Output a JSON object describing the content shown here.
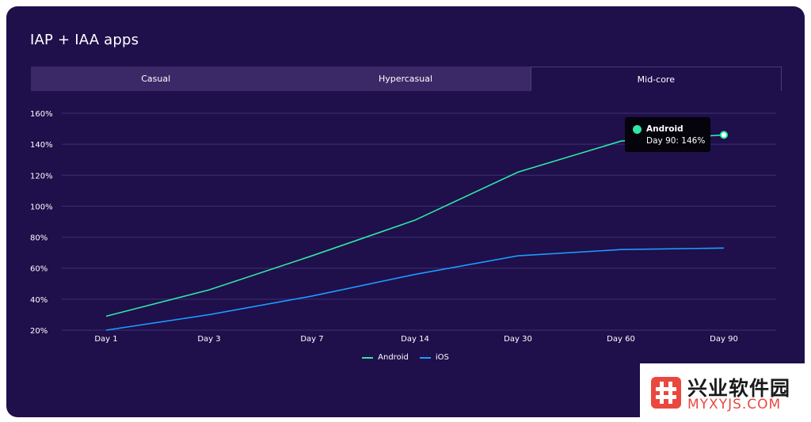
{
  "chart_title": "IAP + IAA apps",
  "tabs": [
    {
      "label": "Casual",
      "active": false
    },
    {
      "label": "Hypercasual",
      "active": false
    },
    {
      "label": "Mid-core",
      "active": true
    }
  ],
  "tooltip": {
    "series": "Android",
    "text": "Day 90: 146%",
    "color": "#2ee8a5"
  },
  "watermark": {
    "cn": "兴业软件园",
    "en": "MYXYJS.COM"
  },
  "chart_data": {
    "type": "line",
    "title": "IAP + IAA apps",
    "categories": [
      "Day 1",
      "Day 3",
      "Day 7",
      "Day 14",
      "Day 30",
      "Day 60",
      "Day 90"
    ],
    "y_ticks": [
      "20%",
      "40%",
      "60%",
      "80%",
      "100%",
      "120%",
      "140%",
      "160%"
    ],
    "ylim": [
      20,
      160
    ],
    "grid": true,
    "legend_position": "bottom-center",
    "series": [
      {
        "name": "Android",
        "color": "#2ee8a5",
        "values": [
          29,
          46,
          68,
          91,
          122,
          142,
          146
        ]
      },
      {
        "name": "iOS",
        "color": "#1b9cff",
        "values": [
          20,
          30,
          42,
          56,
          68,
          72,
          73
        ]
      }
    ]
  }
}
